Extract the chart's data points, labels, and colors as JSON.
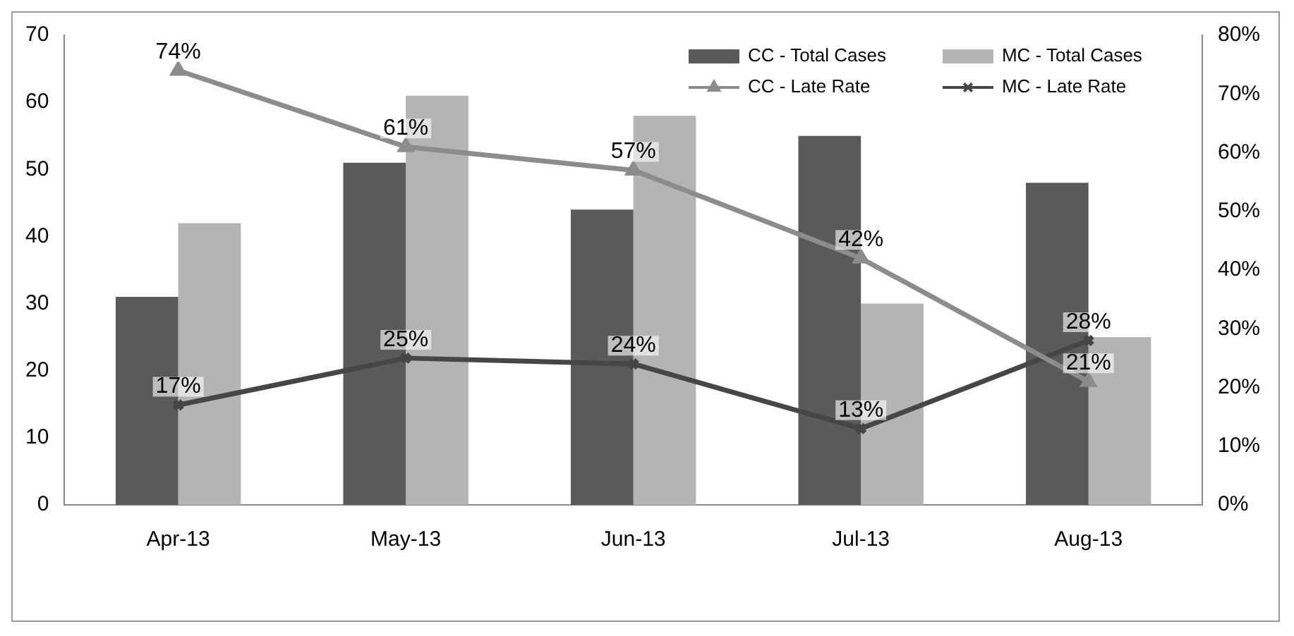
{
  "chart_data": {
    "type": "bar",
    "categories": [
      "Apr-13",
      "May-13",
      "Jun-13",
      "Jul-13",
      "Aug-13"
    ],
    "series": [
      {
        "name": "CC - Total Cases",
        "color": "#5a5a5a",
        "values": [
          31,
          51,
          44,
          55,
          48
        ]
      },
      {
        "name": "MC - Total Cases",
        "color": "#b4b4b4",
        "values": [
          42,
          61,
          58,
          30,
          25
        ]
      },
      {
        "name": "CC - Late Rate",
        "type": "line",
        "axis": "y2",
        "color": "#8c8c8c",
        "marker": "triangle",
        "values": [
          74,
          61,
          57,
          42,
          21
        ],
        "value_labels": [
          "74%",
          "61%",
          "57%",
          "42%",
          "21%"
        ]
      },
      {
        "name": "MC - Late Rate",
        "type": "line",
        "axis": "y2",
        "color": "#464646",
        "marker": "cross",
        "values": [
          17,
          25,
          24,
          13,
          28
        ],
        "value_labels": [
          "17%",
          "25%",
          "24%",
          "13%",
          "28%"
        ]
      }
    ],
    "ylim": [
      0,
      70
    ],
    "yticks": [
      0,
      10,
      20,
      30,
      40,
      50,
      60,
      70
    ],
    "y2lim": [
      0,
      80
    ],
    "y2ticks": [
      {
        "value": 0,
        "label": "0%"
      },
      {
        "value": 10,
        "label": "10%"
      },
      {
        "value": 20,
        "label": "20%"
      },
      {
        "value": 30,
        "label": "30%"
      },
      {
        "value": 40,
        "label": "40%"
      },
      {
        "value": 50,
        "label": "50%"
      },
      {
        "value": 60,
        "label": "60%"
      },
      {
        "value": 70,
        "label": "70%"
      },
      {
        "value": 80,
        "label": "80%"
      }
    ],
    "grid": false,
    "legend": "top right"
  }
}
